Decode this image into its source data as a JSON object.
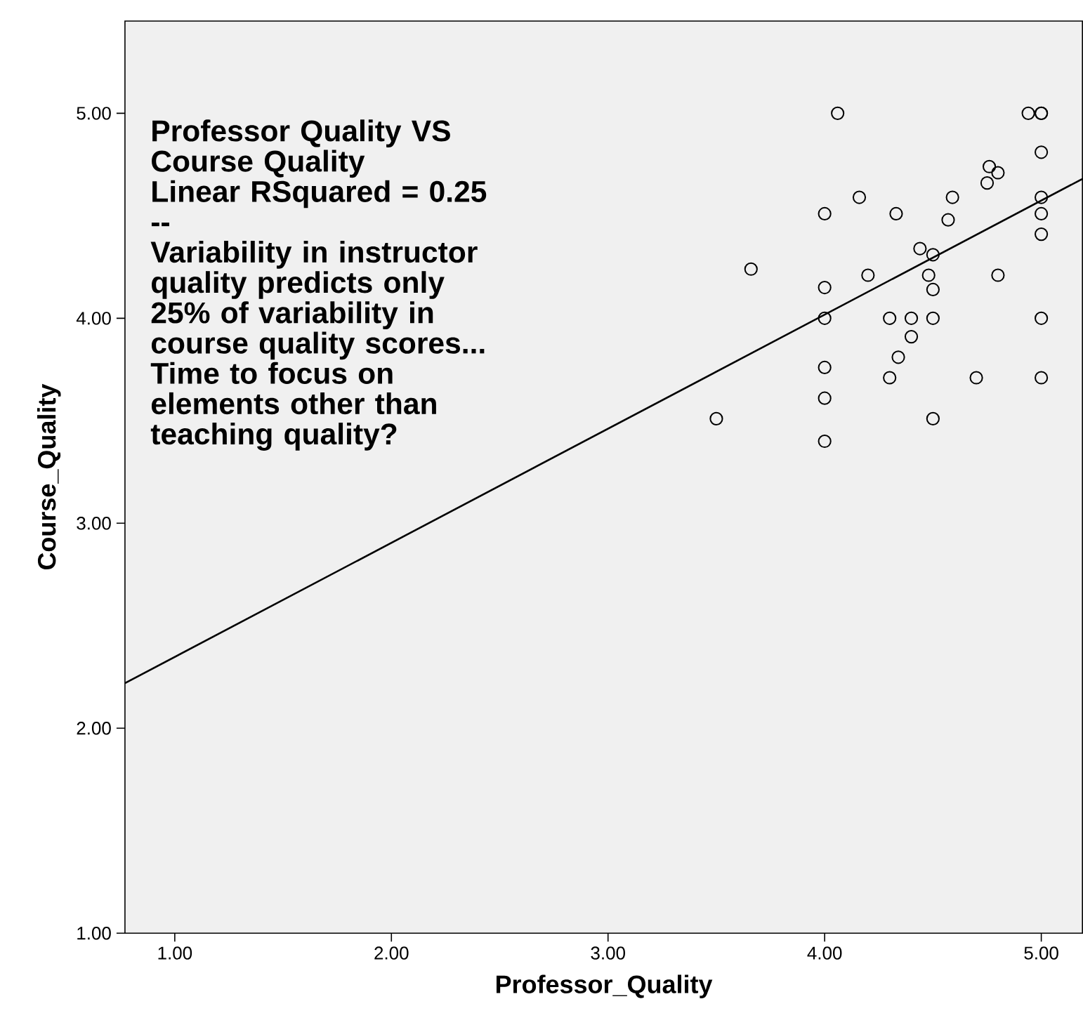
{
  "chart_data": {
    "type": "scatter",
    "xlabel": "Professor_Quality",
    "ylabel": "Course_Quality",
    "annotations": [
      "Professor Quality VS Course Quality",
      "Linear RSquared = 0.25",
      "--",
      "Variability in instructor quality predicts only 25% of variability in course quality scores... Time to focus on elements other than teaching quality?"
    ],
    "xlim": [
      0.77,
      5.19
    ],
    "ylim": [
      1.0,
      5.45
    ],
    "xticks": [
      {
        "value": 1,
        "label": "1.00"
      },
      {
        "value": 2,
        "label": "2.00"
      },
      {
        "value": 3,
        "label": "3.00"
      },
      {
        "value": 4,
        "label": "4.00"
      },
      {
        "value": 5,
        "label": "5.00"
      }
    ],
    "yticks": [
      {
        "value": 1,
        "label": "1.00"
      },
      {
        "value": 2,
        "label": "2.00"
      },
      {
        "value": 3,
        "label": "3.00"
      },
      {
        "value": 4,
        "label": "4.00"
      },
      {
        "value": 5,
        "label": "5.00"
      }
    ],
    "grid": false,
    "marker": "circle",
    "series": [
      {
        "type": "scatter",
        "color": "#000000",
        "x": [
          4.06,
          4.94,
          5.0,
          5.0,
          5.0,
          4.76,
          4.8,
          4.75,
          4.16,
          4.59,
          5.0,
          4.0,
          4.33,
          4.57,
          5.0,
          5.0,
          4.44,
          4.5,
          3.66,
          4.2,
          4.48,
          4.8,
          4.0,
          4.5,
          4.0,
          4.3,
          4.4,
          4.5,
          5.0,
          4.4,
          4.34,
          4.0,
          4.3,
          4.7,
          5.0,
          4.0,
          3.5,
          4.5,
          4.0
        ],
        "values": [
          5.0,
          5.0,
          5.0,
          5.0,
          4.81,
          4.74,
          4.71,
          4.66,
          4.59,
          4.59,
          4.59,
          4.51,
          4.51,
          4.48,
          4.51,
          4.41,
          4.34,
          4.31,
          4.24,
          4.21,
          4.21,
          4.21,
          4.15,
          4.14,
          4.0,
          4.0,
          4.0,
          4.0,
          4.0,
          3.91,
          3.81,
          3.76,
          3.71,
          3.71,
          3.71,
          3.61,
          3.51,
          3.51,
          3.4
        ]
      },
      {
        "type": "line",
        "color": "#000000",
        "line_style": "solid",
        "marker": "none",
        "x": [
          0.77,
          5.19
        ],
        "values": [
          2.22,
          4.68
        ]
      }
    ]
  }
}
